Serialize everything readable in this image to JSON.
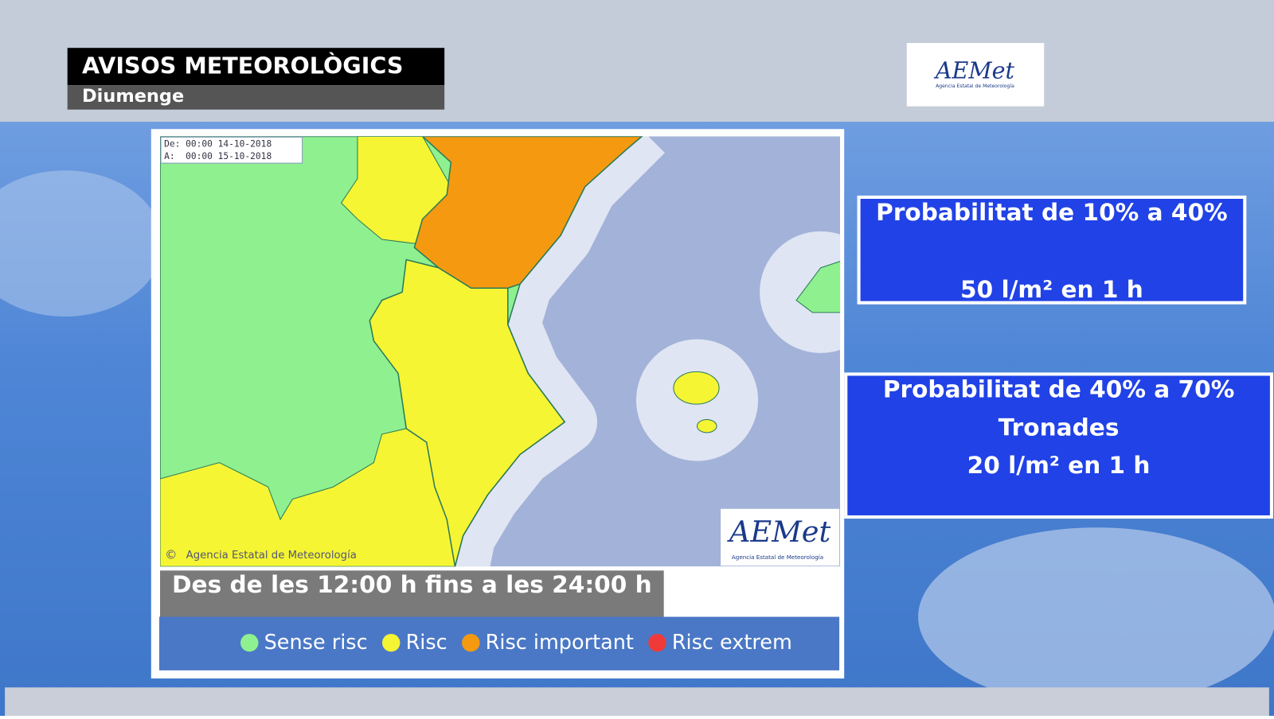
{
  "header": {
    "title": "AVISOS METEOROLÒGICS",
    "subtitle": "Diumenge"
  },
  "logo": {
    "name": "AEMet",
    "tagline": "Agencia Estatal de Meteorología"
  },
  "map": {
    "date_from": "De: 00:00 14-10-2018",
    "date_to": "A:  00:00 15-10-2018",
    "copyright_symbol": "©",
    "copyright": "Agencia Estatal de Meteorología"
  },
  "time_range": "Des de les 12:00 h fins a les 24:00 h",
  "legend": [
    {
      "label": "Sense risc",
      "color": "#8ff08f"
    },
    {
      "label": "Risc",
      "color": "#f5f533"
    },
    {
      "label": "Risc important",
      "color": "#f59a10"
    },
    {
      "label": "Risc extrem",
      "color": "#f03a3a"
    }
  ],
  "boxes": [
    {
      "lines": [
        "Probabilitat de 10% a 40%",
        "50 l/m² en 1 h"
      ]
    },
    {
      "lines": [
        "Probabilitat de 40% a 70%",
        "Tronades",
        "20 l/m² en 1 h"
      ]
    }
  ]
}
